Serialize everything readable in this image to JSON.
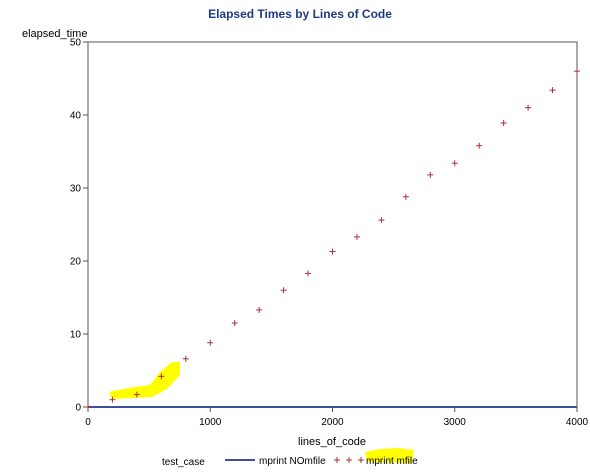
{
  "chart_data": {
    "type": "line",
    "title": "Elapsed Times by Lines of Code",
    "xlabel": "lines_of_code",
    "ylabel": "elapsed_time",
    "xlim": [
      0,
      4000
    ],
    "ylim": [
      0,
      50
    ],
    "x_ticks": [
      0,
      1000,
      2000,
      3000,
      4000
    ],
    "y_ticks": [
      0,
      10,
      20,
      30,
      40,
      50
    ],
    "grid": false,
    "legend": {
      "title": "test_case",
      "placement": "bottom"
    },
    "series": [
      {
        "name": "mprint NOmfile",
        "style": "line",
        "color": "#3b4f9c",
        "x": [
          0,
          200,
          400,
          600,
          800,
          1000,
          1200,
          1400,
          1600,
          1800,
          2000,
          2200,
          2400,
          2600,
          2800,
          3000,
          3200,
          3400,
          3600,
          3800,
          4000
        ],
        "y": [
          0,
          0,
          0,
          0,
          0,
          0,
          0,
          0,
          0,
          0,
          0,
          0,
          0,
          0,
          0,
          0,
          0,
          0,
          0,
          0,
          0
        ]
      },
      {
        "name": "mprint mfile",
        "style": "plus-markers",
        "color": "#b03030",
        "x": [
          0,
          200,
          400,
          600,
          800,
          1000,
          1200,
          1400,
          1600,
          1800,
          2000,
          2200,
          2400,
          2600,
          2800,
          3000,
          3200,
          3400,
          3600,
          3800,
          4000
        ],
        "y": [
          0,
          1.0,
          1.7,
          4.2,
          6.6,
          8.8,
          11.5,
          13.3,
          16.0,
          18.3,
          21.3,
          23.3,
          25.6,
          28.8,
          31.8,
          33.4,
          35.8,
          38.9,
          41.0,
          43.4,
          46.0
        ]
      }
    ],
    "highlight_color": "#ffff00"
  }
}
